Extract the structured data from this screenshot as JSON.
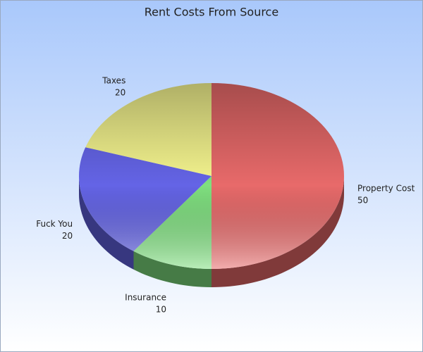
{
  "chart_data": {
    "type": "pie",
    "title": "Rent Costs From Source",
    "categories": [
      "Property Cost",
      "Insurance",
      "Fuck You",
      "Taxes"
    ],
    "values": [
      50,
      10,
      20,
      20
    ],
    "colors": [
      "#e86a6a",
      "#7fe07f",
      "#6464e6",
      "#f4f48e"
    ]
  }
}
